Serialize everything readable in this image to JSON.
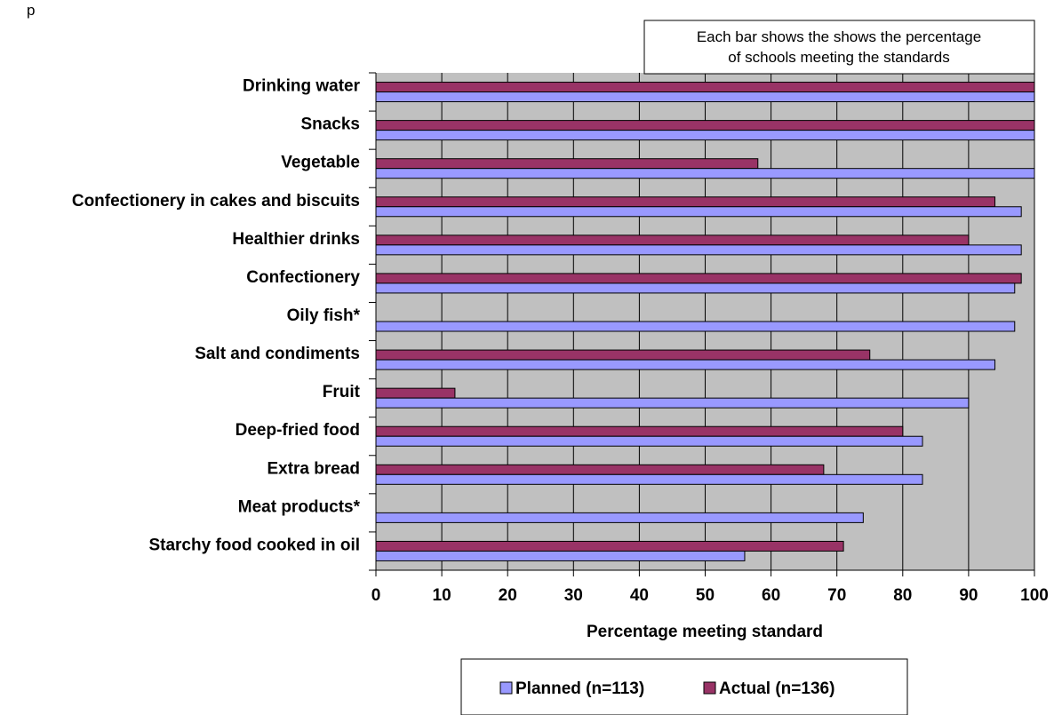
{
  "header": {
    "corner_text": "p"
  },
  "chart_data": {
    "type": "bar",
    "orientation": "horizontal",
    "categories": [
      "Drinking water",
      "Snacks",
      "Vegetable",
      "Confectionery in cakes and biscuits",
      "Healthier drinks",
      "Confectionery",
      "Oily fish*",
      "Salt and condiments",
      "Fruit",
      "Deep-fried food",
      "Extra bread",
      "Meat products*",
      "Starchy food cooked in oil"
    ],
    "series": [
      {
        "name": "Planned (n=113)",
        "color": "#9999ff",
        "values": [
          100,
          100,
          100,
          98,
          98,
          97,
          97,
          94,
          90,
          83,
          83,
          74,
          56
        ]
      },
      {
        "name": "Actual (n=136)",
        "color": "#993366",
        "values": [
          100,
          100,
          58,
          94,
          90,
          98,
          null,
          75,
          12,
          80,
          68,
          null,
          71
        ]
      }
    ],
    "xlabel": "Percentage meeting standard",
    "xlim": [
      0,
      100
    ],
    "xticks": [
      0,
      10,
      20,
      30,
      40,
      50,
      60,
      70,
      80,
      90,
      100
    ],
    "grid": true,
    "plot_background": "#c0c0c0",
    "annotation": "Each bar shows the shows the percentage of schools meeting the standards",
    "annotation_lines": [
      "Each bar shows the shows the percentage",
      "of schools meeting the standards"
    ],
    "legend_position": "bottom"
  }
}
